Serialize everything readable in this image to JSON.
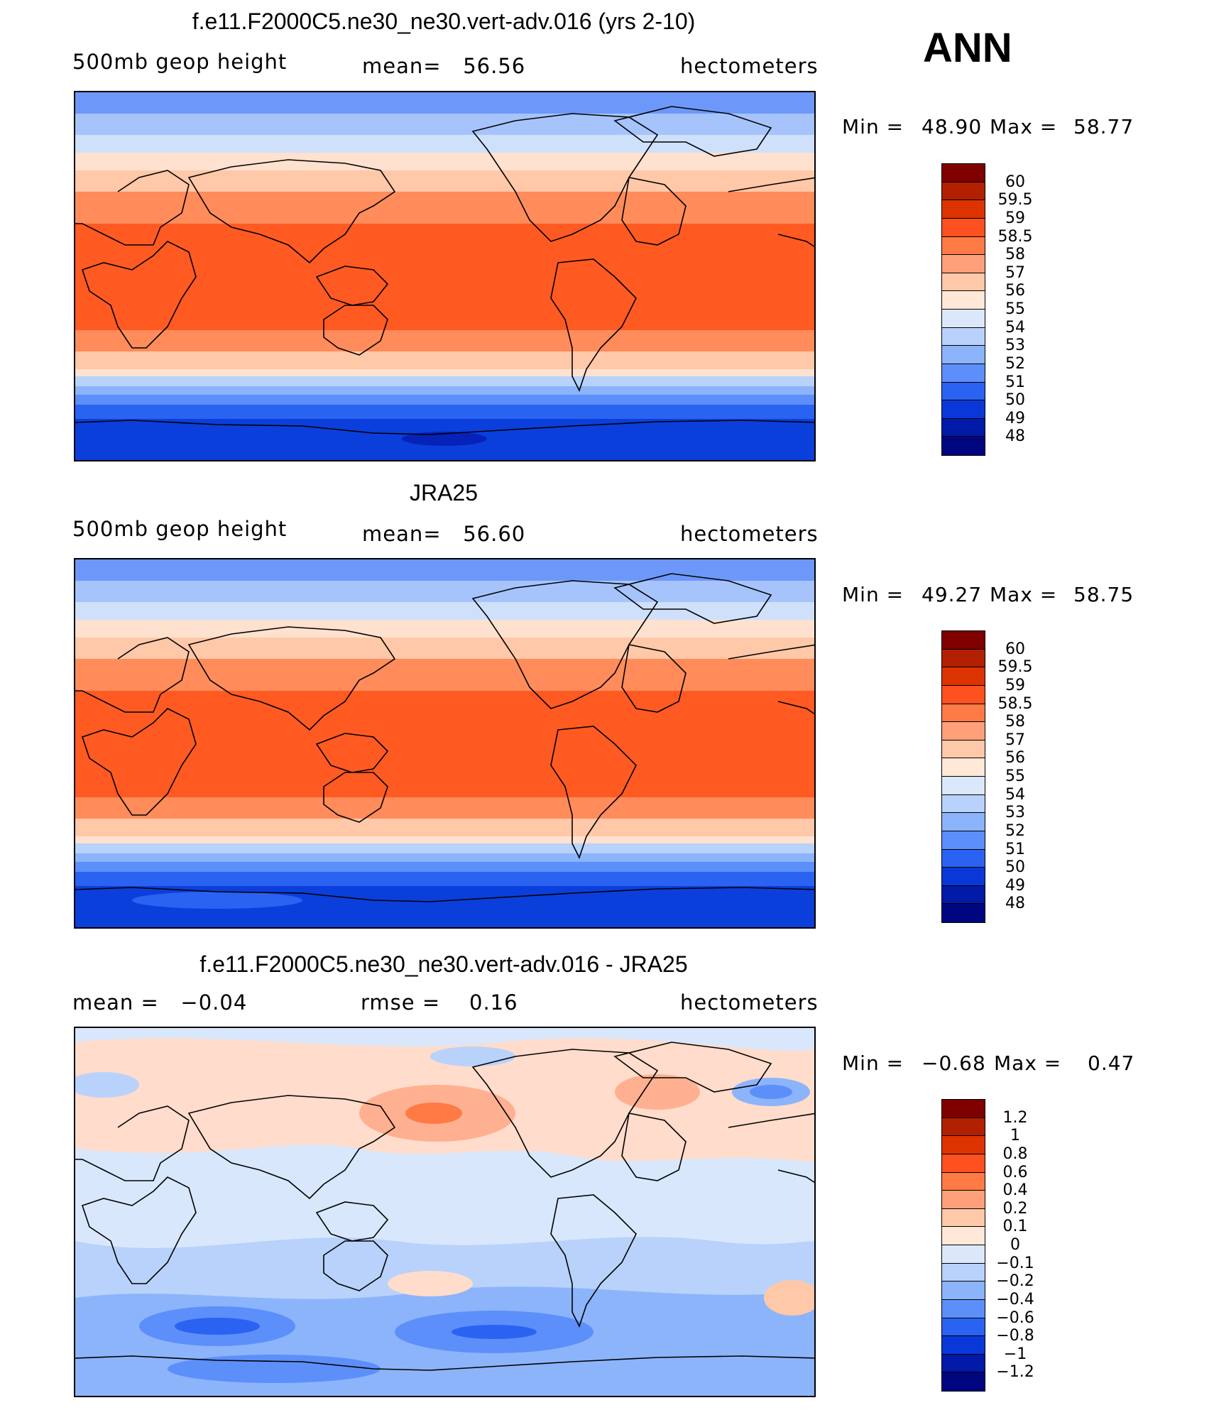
{
  "season": "ANN",
  "panels": [
    {
      "title": "f.e11.F2000C5.ne30_ne30.vert-adv.016 (yrs 2-10)",
      "left_label": "500mb geop height",
      "center_label": "mean=   56.56",
      "right_label": "hectometers",
      "min_label": "Min =",
      "min_value": "48.90",
      "max_label": "Max =",
      "max_value": "58.77",
      "levels": [
        "60",
        "59.5",
        "59",
        "58.5",
        "58",
        "57",
        "56",
        "55",
        "54",
        "53",
        "52",
        "51",
        "50",
        "49",
        "48"
      ]
    },
    {
      "title": "JRA25",
      "left_label": "500mb geop height",
      "center_label": "mean=   56.60",
      "right_label": "hectometers",
      "min_label": "Min =",
      "min_value": "49.27",
      "max_label": "Max =",
      "max_value": "58.75",
      "levels": [
        "60",
        "59.5",
        "59",
        "58.5",
        "58",
        "57",
        "56",
        "55",
        "54",
        "53",
        "52",
        "51",
        "50",
        "49",
        "48"
      ]
    },
    {
      "title": "f.e11.F2000C5.ne30_ne30.vert-adv.016 - JRA25",
      "left_label": "mean =   −0.04",
      "center_label": "rmse =    0.16",
      "right_label": "hectometers",
      "min_label": "Min =",
      "min_value": "−0.68",
      "max_label": "Max =",
      "max_value": "0.47",
      "levels": [
        "1.2",
        "1",
        "0.8",
        "0.6",
        "0.4",
        "0.2",
        "0.1",
        "0",
        "−0.1",
        "−0.2",
        "−0.4",
        "−0.6",
        "−0.8",
        "−1",
        "−1.2"
      ]
    }
  ],
  "colorbar_colors": [
    "#800000",
    "#b22000",
    "#dd3300",
    "#ff5020",
    "#ff7a45",
    "#ffa07a",
    "#ffc8a8",
    "#ffe8d8",
    "#dbe8fb",
    "#b8d2fb",
    "#8cb4fb",
    "#5c8ffa",
    "#2a62f2",
    "#0a38d8",
    "#021aa8",
    "#000580"
  ],
  "map_colors": {
    "tropic": "#ff5a22",
    "subtropic": "#ff8c5a",
    "warm": "#ffb090",
    "mild": "#ffe1cf",
    "cool": "#dbe8fb",
    "cold1": "#a6c4fb",
    "cold2": "#6d98fa",
    "cold3": "#2f66f0",
    "polar": "#0b3fdc",
    "diff_pos": "#ffcdb4",
    "diff_zero": "#d8e7fb",
    "diff_neg": "#9ebdfa",
    "diff_neg2": "#4f82f5"
  }
}
